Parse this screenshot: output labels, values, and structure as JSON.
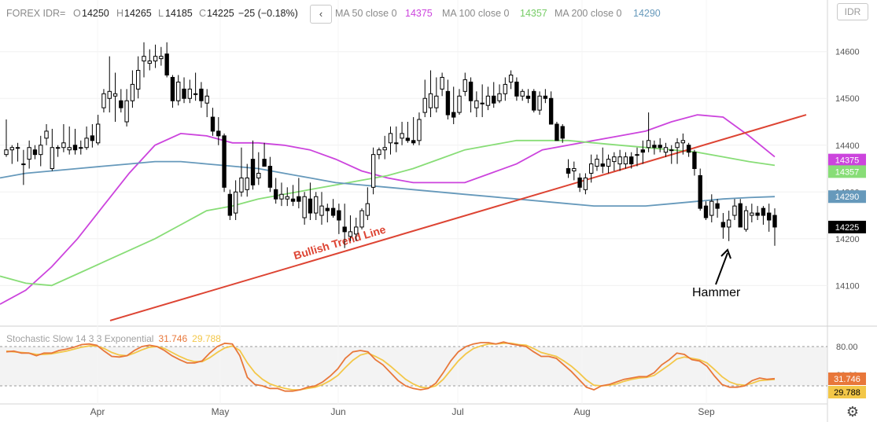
{
  "header": {
    "symbol": "FOREX IDR=",
    "o_label": "O",
    "o_value": "14250",
    "h_label": "H",
    "h_value": "14265",
    "l_label": "L",
    "l_value": "14185",
    "c_label": "C",
    "c_value": "14225",
    "change": "−25 (−0.18%)",
    "back_glyph": "‹",
    "ma50_label": "MA 50 close 0",
    "ma50_value": "14375",
    "ma100_label": "MA 100 close 0",
    "ma100_value": "14357",
    "ma200_label": "MA 200 close 0",
    "ma200_value": "14290"
  },
  "currency_button": "IDR",
  "colors": {
    "ma50": "#cc44dd",
    "ma100": "#88dd77",
    "ma200": "#6699bb",
    "trend": "#dd4433",
    "stoch_k": "#e8773a",
    "stoch_d": "#f3c748",
    "candle": "#000000",
    "grid": "#e8e8e8"
  },
  "chart_data": {
    "type": "candlestick",
    "ylim": [
      14030,
      14660
    ],
    "y_ticks": [
      "14600",
      "14500",
      "14400",
      "14300",
      "14200",
      "14100"
    ],
    "x_ticks": [
      "Apr",
      "May",
      "Jun",
      "Jul",
      "Aug",
      "Sep"
    ],
    "price_labels": [
      {
        "value": "14375",
        "color": "#cc44dd"
      },
      {
        "value": "14357",
        "color": "#88dd77"
      },
      {
        "value": "14290",
        "color": "#6699bb"
      },
      {
        "value": "14225",
        "color": "#000000"
      }
    ],
    "candles": [
      [
        14380,
        14455,
        14375,
        14390
      ],
      [
        14390,
        14400,
        14360,
        14395
      ],
      [
        14395,
        14405,
        14365,
        14395
      ],
      [
        14360,
        14390,
        14315,
        14360
      ],
      [
        14370,
        14410,
        14350,
        14395
      ],
      [
        14390,
        14400,
        14370,
        14380
      ],
      [
        14380,
        14420,
        14355,
        14400
      ],
      [
        14415,
        14445,
        14400,
        14430
      ],
      [
        14350,
        14435,
        14345,
        14395
      ],
      [
        14395,
        14400,
        14375,
        14395
      ],
      [
        14395,
        14445,
        14385,
        14405
      ],
      [
        14390,
        14440,
        14380,
        14395
      ],
      [
        14400,
        14435,
        14380,
        14390
      ],
      [
        14395,
        14410,
        14380,
        14395
      ],
      [
        14395,
        14440,
        14390,
        14415
      ],
      [
        14420,
        14445,
        14395,
        14410
      ],
      [
        14405,
        14465,
        14400,
        14445
      ],
      [
        14480,
        14520,
        14470,
        14510
      ],
      [
        14500,
        14590,
        14470,
        14515
      ],
      [
        14505,
        14555,
        14450,
        14510
      ],
      [
        14495,
        14520,
        14470,
        14480
      ],
      [
        14450,
        14520,
        14440,
        14495
      ],
      [
        14495,
        14560,
        14480,
        14530
      ],
      [
        14520,
        14590,
        14500,
        14560
      ],
      [
        14580,
        14620,
        14545,
        14590
      ],
      [
        14575,
        14605,
        14560,
        14580
      ],
      [
        14580,
        14615,
        14565,
        14590
      ],
      [
        14585,
        14610,
        14570,
        14590
      ],
      [
        14595,
        14620,
        14545,
        14550
      ],
      [
        14545,
        14550,
        14480,
        14495
      ],
      [
        14495,
        14550,
        14485,
        14535
      ],
      [
        14520,
        14545,
        14490,
        14500
      ],
      [
        14500,
        14540,
        14490,
        14520
      ],
      [
        14510,
        14555,
        14495,
        14510
      ],
      [
        14520,
        14535,
        14480,
        14495
      ],
      [
        14490,
        14520,
        14460,
        14505
      ],
      [
        14460,
        14480,
        14420,
        14430
      ],
      [
        14430,
        14460,
        14400,
        14420
      ],
      [
        14420,
        14425,
        14300,
        14310
      ],
      [
        14295,
        14305,
        14240,
        14250
      ],
      [
        14255,
        14325,
        14240,
        14300
      ],
      [
        14300,
        14395,
        14290,
        14330
      ],
      [
        14305,
        14360,
        14290,
        14330
      ],
      [
        14370,
        14410,
        14305,
        14315
      ],
      [
        14330,
        14385,
        14315,
        14340
      ],
      [
        14370,
        14405,
        14355,
        14355
      ],
      [
        14355,
        14375,
        14300,
        14310
      ],
      [
        14305,
        14330,
        14275,
        14285
      ],
      [
        14285,
        14320,
        14270,
        14295
      ],
      [
        14285,
        14310,
        14270,
        14290
      ],
      [
        14285,
        14315,
        14270,
        14280
      ],
      [
        14290,
        14330,
        14265,
        14280
      ],
      [
        14245,
        14300,
        14230,
        14290
      ],
      [
        14285,
        14320,
        14240,
        14255
      ],
      [
        14255,
        14300,
        14240,
        14290
      ],
      [
        14250,
        14300,
        14230,
        14270
      ],
      [
        14265,
        14275,
        14235,
        14260
      ],
      [
        14265,
        14285,
        14245,
        14250
      ],
      [
        14260,
        14275,
        14210,
        14240
      ],
      [
        14225,
        14275,
        14180,
        14215
      ],
      [
        14205,
        14250,
        14195,
        14215
      ],
      [
        14210,
        14245,
        14195,
        14225
      ],
      [
        14225,
        14265,
        14220,
        14260
      ],
      [
        14250,
        14310,
        14240,
        14275
      ],
      [
        14310,
        14395,
        14295,
        14380
      ],
      [
        14380,
        14395,
        14370,
        14390
      ],
      [
        14390,
        14420,
        14370,
        14395
      ],
      [
        14405,
        14440,
        14380,
        14425
      ],
      [
        14405,
        14440,
        14385,
        14405
      ],
      [
        14415,
        14450,
        14400,
        14425
      ],
      [
        14415,
        14450,
        14405,
        14410
      ],
      [
        14410,
        14460,
        14400,
        14405
      ],
      [
        14410,
        14470,
        14400,
        14455
      ],
      [
        14470,
        14540,
        14460,
        14500
      ],
      [
        14480,
        14560,
        14460,
        14510
      ],
      [
        14480,
        14545,
        14470,
        14505
      ],
      [
        14520,
        14555,
        14505,
        14545
      ],
      [
        14515,
        14540,
        14455,
        14465
      ],
      [
        14470,
        14525,
        14445,
        14460
      ],
      [
        14470,
        14520,
        14465,
        14505
      ],
      [
        14515,
        14555,
        14505,
        14540
      ],
      [
        14535,
        14545,
        14470,
        14495
      ],
      [
        14480,
        14515,
        14460,
        14495
      ],
      [
        14490,
        14530,
        14460,
        14490
      ],
      [
        14485,
        14525,
        14475,
        14505
      ],
      [
        14505,
        14535,
        14480,
        14490
      ],
      [
        14495,
        14530,
        14490,
        14510
      ],
      [
        14510,
        14545,
        14495,
        14530
      ],
      [
        14535,
        14560,
        14520,
        14550
      ],
      [
        14535,
        14545,
        14495,
        14505
      ],
      [
        14505,
        14520,
        14495,
        14515
      ],
      [
        14505,
        14520,
        14490,
        14500
      ],
      [
        14515,
        14520,
        14470,
        14475
      ],
      [
        14475,
        14515,
        14465,
        14505
      ],
      [
        14505,
        14520,
        14490,
        14500
      ],
      [
        14500,
        14515,
        14450,
        14445
      ],
      [
        14445,
        14450,
        14410,
        14410
      ],
      [
        14440,
        14445,
        14405,
        14415
      ],
      [
        14350,
        14370,
        14330,
        14340
      ],
      [
        14345,
        14365,
        14325,
        14350
      ],
      [
        14330,
        14340,
        14300,
        14310
      ],
      [
        14305,
        14340,
        14295,
        14330
      ],
      [
        14340,
        14380,
        14320,
        14360
      ],
      [
        14355,
        14380,
        14345,
        14370
      ],
      [
        14360,
        14395,
        14340,
        14355
      ],
      [
        14355,
        14380,
        14340,
        14370
      ],
      [
        14365,
        14385,
        14345,
        14375
      ],
      [
        14360,
        14390,
        14345,
        14375
      ],
      [
        14360,
        14385,
        14350,
        14375
      ],
      [
        14375,
        14385,
        14350,
        14360
      ],
      [
        14380,
        14395,
        14355,
        14380
      ],
      [
        14390,
        14410,
        14360,
        14385
      ],
      [
        14395,
        14470,
        14385,
        14410
      ],
      [
        14400,
        14410,
        14380,
        14395
      ],
      [
        14400,
        14415,
        14385,
        14395
      ],
      [
        14385,
        14405,
        14375,
        14395
      ],
      [
        14390,
        14400,
        14360,
        14390
      ],
      [
        14395,
        14415,
        14360,
        14405
      ],
      [
        14405,
        14425,
        14380,
        14410
      ],
      [
        14400,
        14405,
        14375,
        14385
      ],
      [
        14385,
        14390,
        14335,
        14350
      ],
      [
        14335,
        14350,
        14260,
        14265
      ],
      [
        14270,
        14280,
        14240,
        14245
      ],
      [
        14250,
        14295,
        14235,
        14280
      ],
      [
        14275,
        14285,
        14245,
        14265
      ],
      [
        14235,
        14255,
        14200,
        14225
      ],
      [
        14225,
        14260,
        14195,
        14240
      ],
      [
        14250,
        14285,
        14240,
        14270
      ],
      [
        14275,
        14285,
        14225,
        14225
      ],
      [
        14220,
        14270,
        14215,
        14260
      ],
      [
        14250,
        14275,
        14235,
        14255
      ],
      [
        14255,
        14270,
        14240,
        14250
      ],
      [
        14265,
        14270,
        14230,
        14250
      ],
      [
        14255,
        14275,
        14215,
        14240
      ],
      [
        14250,
        14265,
        14185,
        14225
      ]
    ],
    "series": [
      {
        "name": "MA 50 close 0",
        "values": [
          14060,
          14090,
          14140,
          14200,
          14270,
          14340,
          14400,
          14425,
          14420,
          14405,
          14405,
          14400,
          14390,
          14370,
          14345,
          14330,
          14320,
          14320,
          14320,
          14340,
          14360,
          14390,
          14400,
          14410,
          14420,
          14430,
          14450,
          14465,
          14460,
          14420,
          14375
        ]
      },
      {
        "name": "MA 100 close 0",
        "values": [
          14120,
          14105,
          14100,
          14125,
          14150,
          14175,
          14200,
          14230,
          14260,
          14270,
          14285,
          14295,
          14305,
          14315,
          14325,
          14335,
          14350,
          14370,
          14390,
          14400,
          14410,
          14410,
          14410,
          14405,
          14400,
          14395,
          14390,
          14385,
          14375,
          14365,
          14357
        ]
      },
      {
        "name": "MA 200 close 0",
        "values": [
          14330,
          14340,
          14345,
          14350,
          14355,
          14360,
          14365,
          14365,
          14360,
          14355,
          14350,
          14340,
          14330,
          14320,
          14315,
          14310,
          14305,
          14300,
          14295,
          14290,
          14285,
          14280,
          14275,
          14270,
          14270,
          14270,
          14275,
          14280,
          14285,
          14288,
          14290
        ]
      }
    ],
    "trend_line": {
      "label": "Bullish Trend Line",
      "start": [
        0,
        14025
      ],
      "end": [
        150,
        14465
      ]
    },
    "annotations": [
      {
        "text": "Hammer",
        "candle_index": 130,
        "price": 14180
      }
    ],
    "stochastic": {
      "label": "Stochastic Slow 14 3 3 Exponential",
      "k_value": "31.746",
      "d_value": "29.788",
      "upper_band": "80.00",
      "lower_band": "20.00",
      "ylim": [
        0,
        100
      ],
      "k": [
        72,
        73,
        70,
        70,
        66,
        70,
        70,
        74,
        76,
        79,
        83,
        84,
        82,
        73,
        65,
        64,
        66,
        74,
        80,
        82,
        80,
        74,
        66,
        60,
        55,
        55,
        58,
        70,
        80,
        85,
        84,
        66,
        33,
        22,
        20,
        16,
        16,
        12,
        12,
        14,
        18,
        20,
        26,
        35,
        46,
        62,
        72,
        74,
        72,
        60,
        52,
        40,
        28,
        20,
        16,
        14,
        16,
        24,
        40,
        58,
        72,
        80,
        84,
        86,
        86,
        84,
        87,
        84,
        82,
        80,
        72,
        65,
        65,
        62,
        52,
        42,
        30,
        18,
        14,
        20,
        22,
        26,
        30,
        32,
        34,
        34,
        40,
        52,
        60,
        70,
        68,
        60,
        58,
        50,
        35,
        22,
        18,
        18,
        20,
        28,
        32,
        30,
        31
      ],
      "d": [
        73,
        72,
        71,
        70,
        68,
        68,
        69,
        71,
        73,
        76,
        79,
        81,
        81,
        77,
        71,
        67,
        66,
        70,
        75,
        79,
        80,
        77,
        71,
        65,
        60,
        57,
        57,
        63,
        71,
        78,
        81,
        74,
        55,
        40,
        30,
        23,
        19,
        16,
        14,
        14,
        16,
        18,
        22,
        28,
        36,
        48,
        59,
        67,
        70,
        65,
        59,
        50,
        40,
        30,
        23,
        18,
        17,
        20,
        30,
        44,
        58,
        69,
        77,
        81,
        84,
        84,
        85,
        85,
        83,
        82,
        77,
        71,
        68,
        65,
        58,
        50,
        40,
        29,
        21,
        20,
        21,
        23,
        27,
        30,
        32,
        33,
        36,
        44,
        52,
        61,
        64,
        62,
        60,
        55,
        45,
        34,
        26,
        22,
        21,
        24,
        28,
        29,
        29.8
      ]
    }
  }
}
